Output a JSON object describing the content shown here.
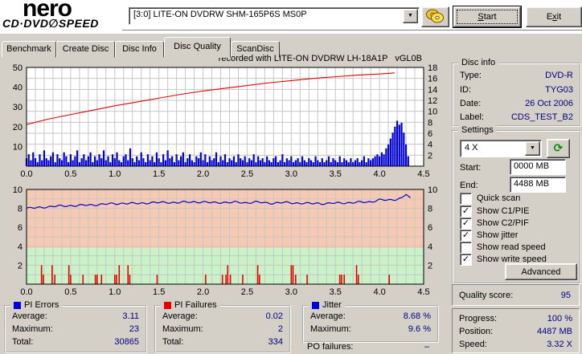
{
  "colors": {
    "value_text": "#000080",
    "pie_blue": "#0000d8",
    "fail_red": "#e80000",
    "speed_red": "#e00000",
    "zone_salmon": "#f6cab2",
    "zone_green": "#c9f2c7",
    "window_bg": "#d4d0c8",
    "grid": "#c6c6c6"
  },
  "header": {
    "logo": {
      "line1": "nero",
      "line2": "CD·DVD∅SPEED"
    },
    "drive": "[3:0]  LITE-ON DVDRW SHM-165P6S MS0P",
    "eject_icon": "discs-icon",
    "buttons": {
      "start": {
        "pre": "",
        "key": "S",
        "post": "tart"
      },
      "exit": {
        "pre": "E",
        "key": "x",
        "post": "it"
      }
    }
  },
  "tabs": {
    "items": [
      "Benchmark",
      "Create Disc",
      "Disc Info",
      "Disc Quality",
      "ScanDisc"
    ],
    "active": 3,
    "widths": [
      66,
      71,
      59,
      81,
      59
    ]
  },
  "chart_data": [
    {
      "type": "bar",
      "title": "recorded with LITE-ON DVDRW LH-18A1P   vGL0B",
      "x_range": [
        0,
        4.5
      ],
      "x_ticks": [
        0.0,
        0.5,
        1.0,
        1.5,
        2.0,
        2.5,
        3.0,
        3.5,
        4.0,
        4.5
      ],
      "x_minor_step": 0.1,
      "left_axis": {
        "label": "PI Errors",
        "range": [
          0,
          50
        ],
        "ticks": [
          10,
          20,
          30,
          40,
          50
        ]
      },
      "right_axis": {
        "label": "Write speed (X)",
        "range": [
          0,
          18
        ],
        "ticks": [
          2,
          4,
          6,
          8,
          10,
          12,
          14,
          16,
          18
        ]
      },
      "series": [
        {
          "name": "PI Errors",
          "type": "bars",
          "axis": "left",
          "x_start": 0,
          "x_step": 0.025,
          "values": [
            4,
            6,
            3,
            7,
            4,
            2,
            6,
            3,
            8,
            4,
            3,
            5,
            7,
            2,
            6,
            4,
            3,
            7,
            5,
            2,
            6,
            3,
            5,
            8,
            2,
            4,
            6,
            3,
            5,
            7,
            2,
            5,
            3,
            6,
            4,
            8,
            3,
            5,
            2,
            6,
            4,
            7,
            3,
            2,
            5,
            6,
            3,
            9,
            4,
            2,
            5,
            3,
            7,
            4,
            2,
            6,
            3,
            5,
            2,
            7,
            4,
            2,
            6,
            3,
            8,
            4,
            5,
            2,
            6,
            3,
            5,
            7,
            2,
            4,
            6,
            3,
            2,
            5,
            4,
            7,
            3,
            6,
            2,
            5,
            3,
            4,
            7,
            2,
            5,
            3,
            6,
            2,
            4,
            3,
            5,
            2,
            6,
            4,
            3,
            5,
            2,
            4,
            3,
            6,
            2,
            5,
            3,
            4,
            2,
            5,
            3,
            2,
            4,
            5,
            2,
            3,
            6,
            2,
            4,
            3,
            5,
            2,
            3,
            4,
            2,
            5,
            3,
            2,
            4,
            3,
            2,
            5,
            3,
            2,
            4,
            2,
            3,
            5,
            2,
            4,
            3,
            2,
            5,
            2,
            4,
            3,
            2,
            4,
            2,
            3,
            4,
            2,
            3,
            5,
            2,
            4,
            3,
            4,
            5,
            6,
            5,
            7,
            6,
            9,
            11,
            14,
            17,
            20,
            23,
            21,
            22,
            17,
            11,
            5
          ]
        },
        {
          "name": "Write speed",
          "type": "line",
          "axis": "right",
          "points": [
            [
              0,
              7.6
            ],
            [
              0.25,
              8.6
            ],
            [
              0.5,
              9.4
            ],
            [
              0.75,
              10.2
            ],
            [
              1.0,
              11.0
            ],
            [
              1.25,
              11.7
            ],
            [
              1.5,
              12.4
            ],
            [
              1.75,
              13.1
            ],
            [
              2.0,
              13.7
            ],
            [
              2.25,
              14.2
            ],
            [
              2.5,
              14.7
            ],
            [
              2.75,
              15.2
            ],
            [
              3.0,
              15.6
            ],
            [
              3.25,
              16.0
            ],
            [
              3.5,
              16.3
            ],
            [
              3.75,
              16.6
            ],
            [
              4.0,
              16.8
            ],
            [
              4.17,
              17.0
            ]
          ]
        }
      ]
    },
    {
      "type": "line",
      "x_range": [
        0,
        4.5
      ],
      "x_ticks": [
        0.0,
        0.5,
        1.0,
        1.5,
        2.0,
        2.5,
        3.0,
        3.5,
        4.0,
        4.5
      ],
      "x_minor_step": 0.1,
      "left_axis": {
        "label": "Jitter (%) / PI Failures",
        "range": [
          0,
          10
        ],
        "ticks": [
          2,
          4,
          6,
          8,
          10
        ]
      },
      "right_axis": {
        "range": [
          0,
          10
        ],
        "ticks": [
          2,
          4,
          6,
          8,
          10
        ]
      },
      "zones": [
        {
          "from": 3.8,
          "to": 10,
          "color": "#f6cab2"
        },
        {
          "from": 0,
          "to": 3.8,
          "color": "#c9f2c7"
        }
      ],
      "series": [
        {
          "name": "PI Failures",
          "type": "bars",
          "axis": "left",
          "points": [
            [
              0.17,
              2
            ],
            [
              0.19,
              1
            ],
            [
              0.29,
              2
            ],
            [
              0.32,
              1
            ],
            [
              0.48,
              2
            ],
            [
              0.5,
              1
            ],
            [
              0.64,
              1
            ],
            [
              0.78,
              1
            ],
            [
              0.8,
              1
            ],
            [
              0.85,
              1
            ],
            [
              1.0,
              1
            ],
            [
              1.02,
              1
            ],
            [
              1.05,
              2
            ],
            [
              1.15,
              2
            ],
            [
              1.17,
              1
            ],
            [
              1.48,
              1
            ],
            [
              2.03,
              1
            ],
            [
              2.22,
              1
            ],
            [
              2.26,
              1
            ],
            [
              2.28,
              2
            ],
            [
              2.31,
              1
            ],
            [
              2.45,
              1
            ],
            [
              2.62,
              2
            ],
            [
              2.64,
              1
            ],
            [
              3.0,
              2
            ],
            [
              3.02,
              2
            ],
            [
              3.05,
              1
            ],
            [
              3.18,
              1
            ],
            [
              3.55,
              1
            ],
            [
              3.57,
              1
            ],
            [
              3.6,
              1
            ],
            [
              3.74,
              2
            ],
            [
              3.76,
              1
            ],
            [
              4.11,
              1
            ]
          ]
        },
        {
          "name": "Jitter",
          "type": "line",
          "axis": "left",
          "points": [
            [
              0,
              8.0
            ],
            [
              0.1,
              8.05
            ],
            [
              0.2,
              8.15
            ],
            [
              0.3,
              8.2
            ],
            [
              0.4,
              8.25
            ],
            [
              0.5,
              8.3
            ],
            [
              0.6,
              8.3
            ],
            [
              0.7,
              8.35
            ],
            [
              0.8,
              8.4
            ],
            [
              0.9,
              8.45
            ],
            [
              1.0,
              8.5
            ],
            [
              1.1,
              8.55
            ],
            [
              1.2,
              8.5
            ],
            [
              1.3,
              8.55
            ],
            [
              1.4,
              8.6
            ],
            [
              1.5,
              8.6
            ],
            [
              1.6,
              8.65
            ],
            [
              1.7,
              8.6
            ],
            [
              1.8,
              8.65
            ],
            [
              1.9,
              8.7
            ],
            [
              2.0,
              8.65
            ],
            [
              2.1,
              8.6
            ],
            [
              2.2,
              8.65
            ],
            [
              2.3,
              8.6
            ],
            [
              2.4,
              8.65
            ],
            [
              2.5,
              8.6
            ],
            [
              2.6,
              8.65
            ],
            [
              2.7,
              8.6
            ],
            [
              2.8,
              8.55
            ],
            [
              2.9,
              8.6
            ],
            [
              3.0,
              8.6
            ],
            [
              3.1,
              8.55
            ],
            [
              3.2,
              8.5
            ],
            [
              3.3,
              8.55
            ],
            [
              3.4,
              8.5
            ],
            [
              3.5,
              8.55
            ],
            [
              3.6,
              8.6
            ],
            [
              3.7,
              8.6
            ],
            [
              3.8,
              8.65
            ],
            [
              3.9,
              8.7
            ],
            [
              4.0,
              8.9
            ],
            [
              4.1,
              8.85
            ],
            [
              4.2,
              9.0
            ],
            [
              4.25,
              9.1
            ],
            [
              4.3,
              9.5
            ],
            [
              4.33,
              9.2
            ],
            [
              4.35,
              9.0
            ]
          ]
        }
      ]
    }
  ],
  "disc_info": {
    "title": "Disc info",
    "rows": [
      [
        "Type:",
        "DVD-R"
      ],
      [
        "ID:",
        "TYG03"
      ],
      [
        "Date:",
        "26 Oct 2006"
      ],
      [
        "Label:",
        "CDS_TEST_B2"
      ]
    ]
  },
  "settings": {
    "title": "Settings",
    "speed": "4 X",
    "refresh_icon": "refresh-icon",
    "start_label": "Start:",
    "start_value": "0000 MB",
    "end_label": "End:",
    "end_value": "4488 MB",
    "checkboxes": [
      {
        "label": "Quick scan",
        "checked": false
      },
      {
        "label": "Show C1/PIE",
        "checked": true
      },
      {
        "label": "Show C2/PIF",
        "checked": true
      },
      {
        "label": "Show jitter",
        "checked": true
      },
      {
        "label": "Show read speed",
        "checked": false
      },
      {
        "label": "Show write speed",
        "checked": true
      }
    ],
    "advanced_label": "Advanced"
  },
  "quality": {
    "label": "Quality score:",
    "value": "95"
  },
  "stats": {
    "pi_errors": {
      "title": "PI Errors",
      "color": "#0000e0",
      "rows": [
        [
          "Average:",
          "3.11"
        ],
        [
          "Maximum:",
          "23"
        ],
        [
          "Total:",
          "30865"
        ]
      ]
    },
    "pi_failures": {
      "title": "PI Failures",
      "color": "#e80000",
      "rows": [
        [
          "Average:",
          "0.02"
        ],
        [
          "Maximum:",
          "2"
        ],
        [
          "Total:",
          "334"
        ]
      ]
    },
    "jitter": {
      "title": "Jitter",
      "color": "#0000e0",
      "rows": [
        [
          "Average:",
          "8.68 %"
        ],
        [
          "Maximum:",
          "9.6 %"
        ]
      ]
    },
    "po_failures": {
      "label": "PO failures:",
      "value": "–"
    }
  },
  "progress": {
    "rows": [
      [
        "Progress:",
        "100 %"
      ],
      [
        "Position:",
        "4487 MB"
      ],
      [
        "Speed:",
        "3.32 X"
      ]
    ]
  }
}
